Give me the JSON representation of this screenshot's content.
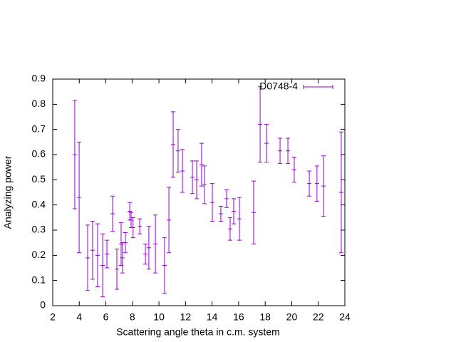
{
  "chart_data": {
    "type": "errorbar",
    "xlabel": "Scattering angle theta in c.m. system",
    "ylabel": "Analyzing power",
    "xlim": [
      2,
      24
    ],
    "xticks": [
      2,
      4,
      6,
      8,
      10,
      12,
      14,
      16,
      18,
      20,
      22,
      24
    ],
    "ylim": [
      0,
      0.9
    ],
    "yticks": [
      0,
      0.1,
      0.2,
      0.3,
      0.4,
      0.5,
      0.6,
      0.7,
      0.8,
      0.9
    ],
    "legend": "top right",
    "series": [
      {
        "name": "D0748-4",
        "color": "#9400d3",
        "x": [
          3.66,
          3.99,
          4.63,
          5.0,
          5.38,
          5.76,
          6.08,
          6.51,
          6.83,
          7.15,
          7.25,
          7.47,
          7.8,
          7.9,
          8.05,
          8.55,
          8.98,
          9.24,
          9.73,
          10.42,
          10.75,
          11.07,
          11.44,
          11.77,
          12.52,
          12.84,
          13.21,
          13.43,
          14.02,
          14.66,
          15.09,
          15.36,
          15.63,
          16.06,
          17.13,
          17.62,
          18.1,
          19.12,
          19.71,
          20.19,
          21.32,
          21.9,
          22.39,
          23.73
        ],
        "values": [
          0.6,
          0.43,
          0.19,
          0.22,
          0.2,
          0.16,
          0.205,
          0.365,
          0.145,
          0.245,
          0.19,
          0.25,
          0.375,
          0.34,
          0.31,
          0.315,
          0.205,
          0.23,
          0.245,
          0.16,
          0.34,
          0.64,
          0.615,
          0.535,
          0.51,
          0.5,
          0.56,
          0.48,
          0.41,
          0.365,
          0.425,
          0.305,
          0.375,
          0.345,
          0.37,
          0.72,
          0.645,
          0.615,
          0.615,
          0.54,
          0.485,
          0.485,
          0.475,
          0.45
        ],
        "errors": [
          0.215,
          0.22,
          0.13,
          0.115,
          0.125,
          0.125,
          0.055,
          0.07,
          0.08,
          0.085,
          0.06,
          0.04,
          0.035,
          0.03,
          0.04,
          0.03,
          0.04,
          0.085,
          0.115,
          0.11,
          0.13,
          0.13,
          0.085,
          0.085,
          0.065,
          0.075,
          0.085,
          0.075,
          0.075,
          0.03,
          0.035,
          0.045,
          0.05,
          0.085,
          0.125,
          0.15,
          0.075,
          0.05,
          0.05,
          0.05,
          0.05,
          0.07,
          0.12,
          0.24
        ]
      }
    ]
  }
}
